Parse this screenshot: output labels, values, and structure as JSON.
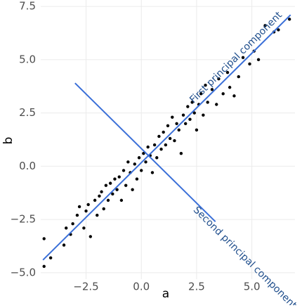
{
  "chart_data": {
    "type": "scatter",
    "x_label": "a",
    "y_label": "b",
    "xlim": [
      -4.55,
      6.95
    ],
    "ylim": [
      -5.3,
      7.8
    ],
    "xticks": [
      {
        "value": -2.5,
        "label": "−2.5"
      },
      {
        "value": 0,
        "label": "0.0"
      },
      {
        "value": 2.5,
        "label": "2.5"
      },
      {
        "value": 5,
        "label": "5.0"
      }
    ],
    "yticks": [
      {
        "value": -5,
        "label": "−5.0"
      },
      {
        "value": -2.5,
        "label": "−2.5"
      },
      {
        "value": 0,
        "label": "0.0"
      },
      {
        "value": 2.5,
        "label": "2.5"
      },
      {
        "value": 5,
        "label": "5.0"
      },
      {
        "value": 7.5,
        "label": "7.5"
      }
    ],
    "grid": true,
    "color": "#000000",
    "x": [
      -4.4,
      -4.4,
      -4.1,
      -3.5,
      -3.4,
      -3.2,
      -3.1,
      -2.9,
      -2.8,
      -2.6,
      -2.5,
      -2.4,
      -2.3,
      -2.1,
      -2.0,
      -1.9,
      -1.8,
      -1.7,
      -1.6,
      -1.5,
      -1.4,
      -1.3,
      -1.2,
      -1.1,
      -1.0,
      -0.9,
      -0.8,
      -0.7,
      -0.6,
      -0.5,
      -0.4,
      -0.3,
      -0.2,
      -0.1,
      0.0,
      0.1,
      0.2,
      0.3,
      0.4,
      0.5,
      0.6,
      0.7,
      0.8,
      0.9,
      1.0,
      1.1,
      1.2,
      1.3,
      1.4,
      1.5,
      1.6,
      1.7,
      1.8,
      1.9,
      2.0,
      2.1,
      2.2,
      2.3,
      2.4,
      2.5,
      2.6,
      2.7,
      2.8,
      2.9,
      3.0,
      3.2,
      3.4,
      3.5,
      3.7,
      3.9,
      4.0,
      4.2,
      4.4,
      4.6,
      4.9,
      5.1,
      5.3,
      5.6,
      6.0,
      6.2,
      6.7
    ],
    "values": [
      -4.7,
      -3.4,
      -4.3,
      -3.7,
      -2.9,
      -3.2,
      -2.7,
      -2.3,
      -1.9,
      -2.9,
      -2.1,
      -1.8,
      -3.3,
      -1.6,
      -2.3,
      -1.4,
      -1.2,
      -2.0,
      -0.9,
      -1.6,
      -0.8,
      -1.3,
      -0.6,
      -1.1,
      -0.5,
      -1.6,
      -0.2,
      -0.9,
      0.2,
      -0.3,
      -1.1,
      0.1,
      -0.6,
      0.4,
      -0.2,
      0.6,
      0.2,
      0.9,
      0.5,
      -0.3,
      1.0,
      0.4,
      1.4,
      0.8,
      1.6,
      1.0,
      1.9,
      1.3,
      2.3,
      1.2,
      2.0,
      1.7,
      0.6,
      2.4,
      2.0,
      2.8,
      2.2,
      3.0,
      2.5,
      1.7,
      2.9,
      3.4,
      2.4,
      3.8,
      3.0,
      3.6,
      2.9,
      4.1,
      3.4,
      4.4,
      3.7,
      3.3,
      4.2,
      5.1,
      4.8,
      5.4,
      5.0,
      6.6,
      6.3,
      6.4,
      6.9
    ],
    "lines": [
      {
        "label": "First principal component",
        "color": "#3a6fd8",
        "x": [
          -4.45,
          6.75
        ],
        "values": [
          -4.4,
          7.1
        ]
      },
      {
        "label": "Second principal component",
        "color": "#3a6fd8",
        "x": [
          -3.0,
          3.35
        ],
        "values": [
          3.9,
          -2.6
        ]
      }
    ]
  }
}
